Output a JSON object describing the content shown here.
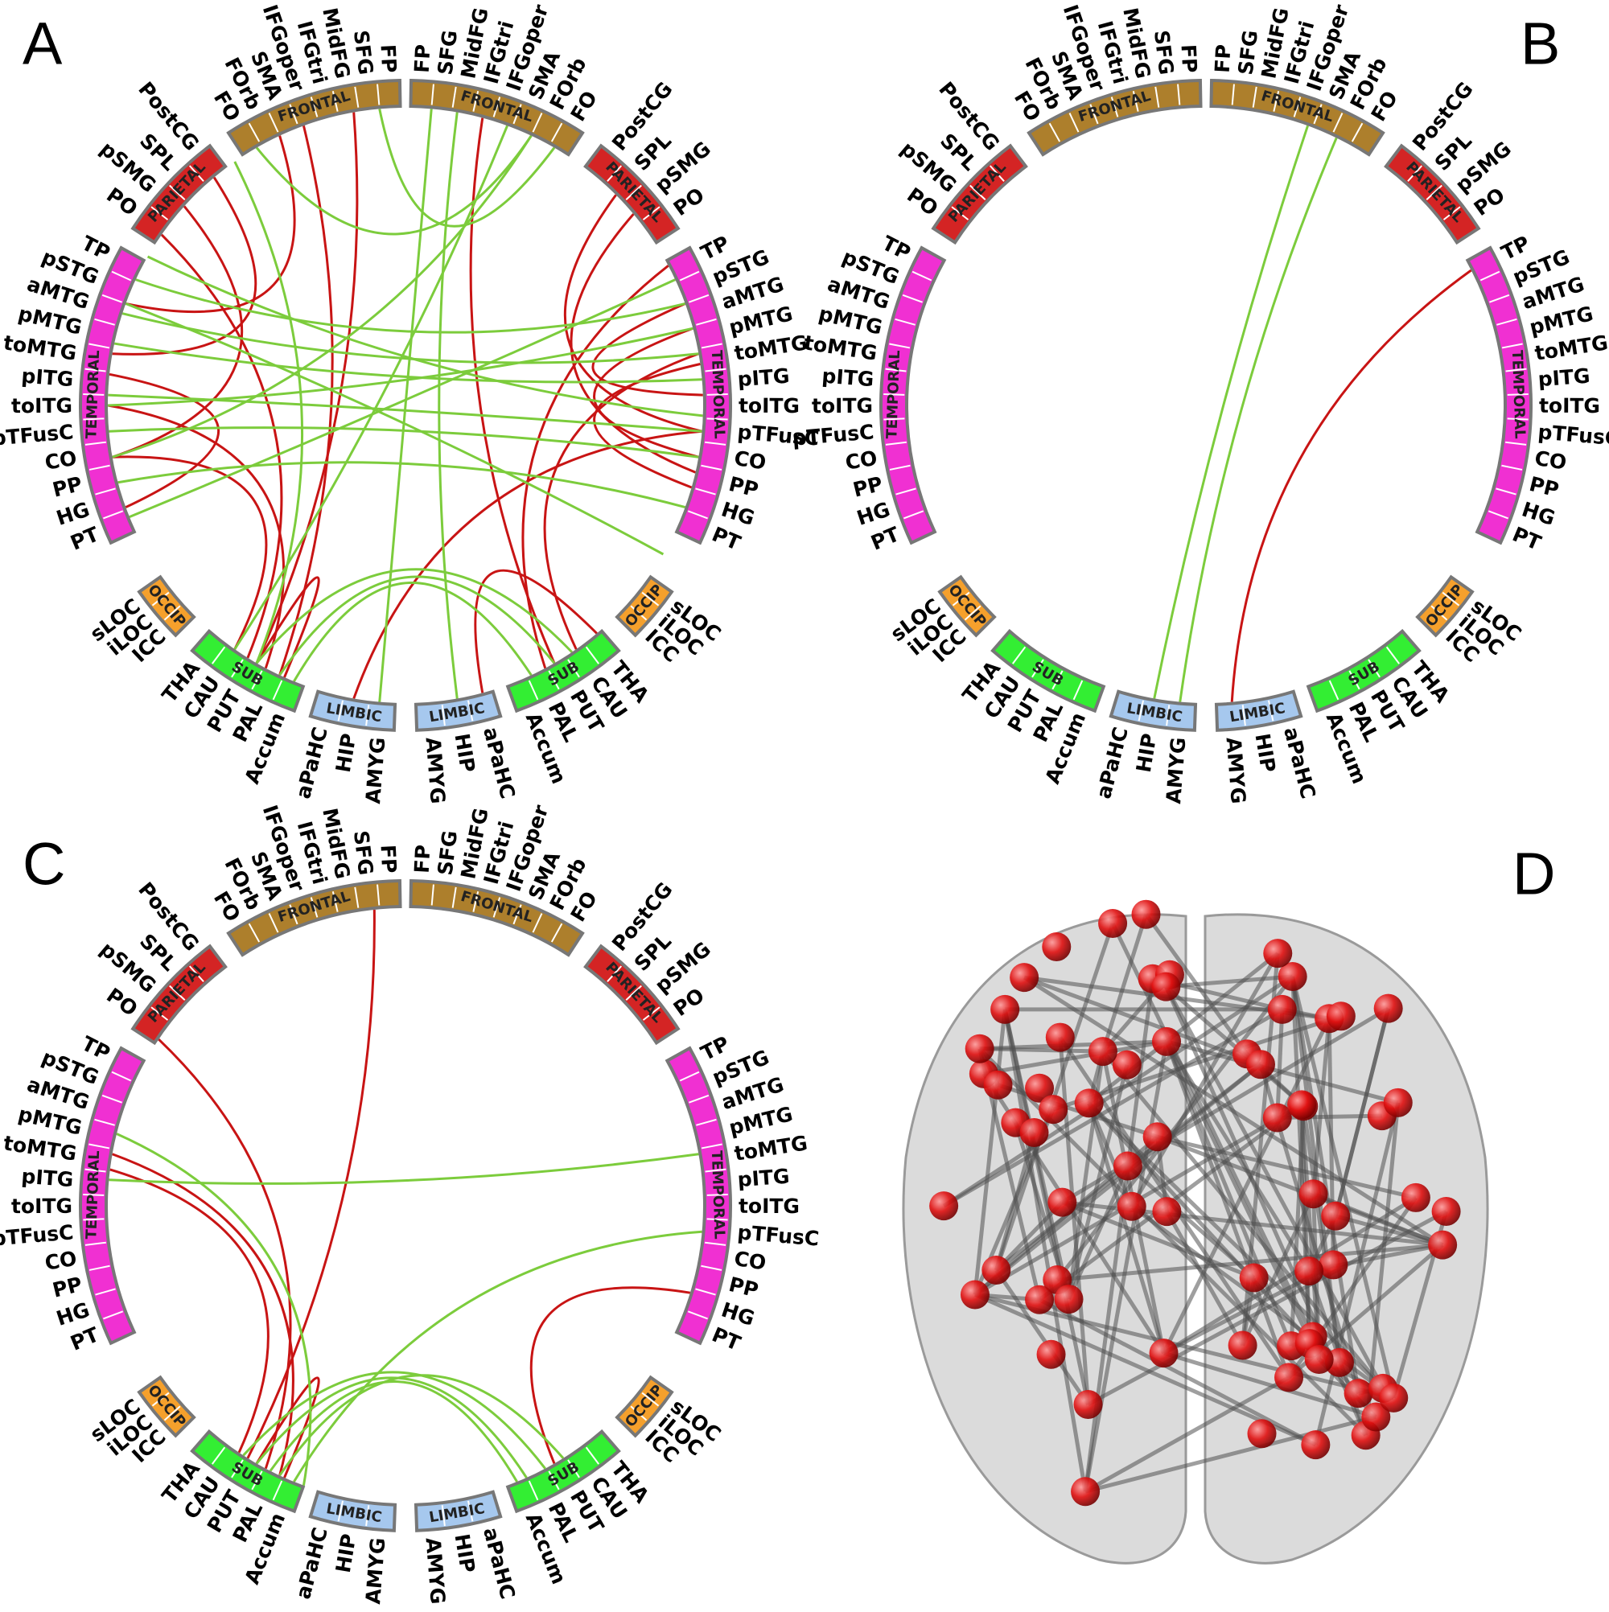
{
  "panels": [
    {
      "letter": "A"
    },
    {
      "letter": "B"
    },
    {
      "letter": "C"
    },
    {
      "letter": "D"
    }
  ],
  "ring": {
    "lobes": [
      {
        "name": "FRONTAL",
        "regions": [
          "FP",
          "SFG",
          "MidFG",
          "IFGtri",
          "IFGoper",
          "SMA",
          "FOrb",
          "FO"
        ]
      },
      {
        "name": "PARIETAL",
        "regions": [
          "PostCG",
          "SPL",
          "pSMG",
          "PO"
        ]
      },
      {
        "name": "TEMPORAL",
        "regions": [
          "TP",
          "pSTG",
          "aMTG",
          "pMTG",
          "toMTG",
          "pITG",
          "toITG",
          "pTFusC",
          "CO",
          "PP",
          "HG",
          "PT"
        ]
      },
      {
        "name": "OCCIP",
        "regions": [
          "sLOC",
          "iLOC",
          "ICC"
        ]
      },
      {
        "name": "SUB",
        "regions": [
          "THA",
          "CAU",
          "PUT",
          "PAL",
          "Accum"
        ]
      },
      {
        "name": "LIMBIC",
        "regions": [
          "aPaHC",
          "HIP",
          "AMYG"
        ]
      }
    ]
  }
}
